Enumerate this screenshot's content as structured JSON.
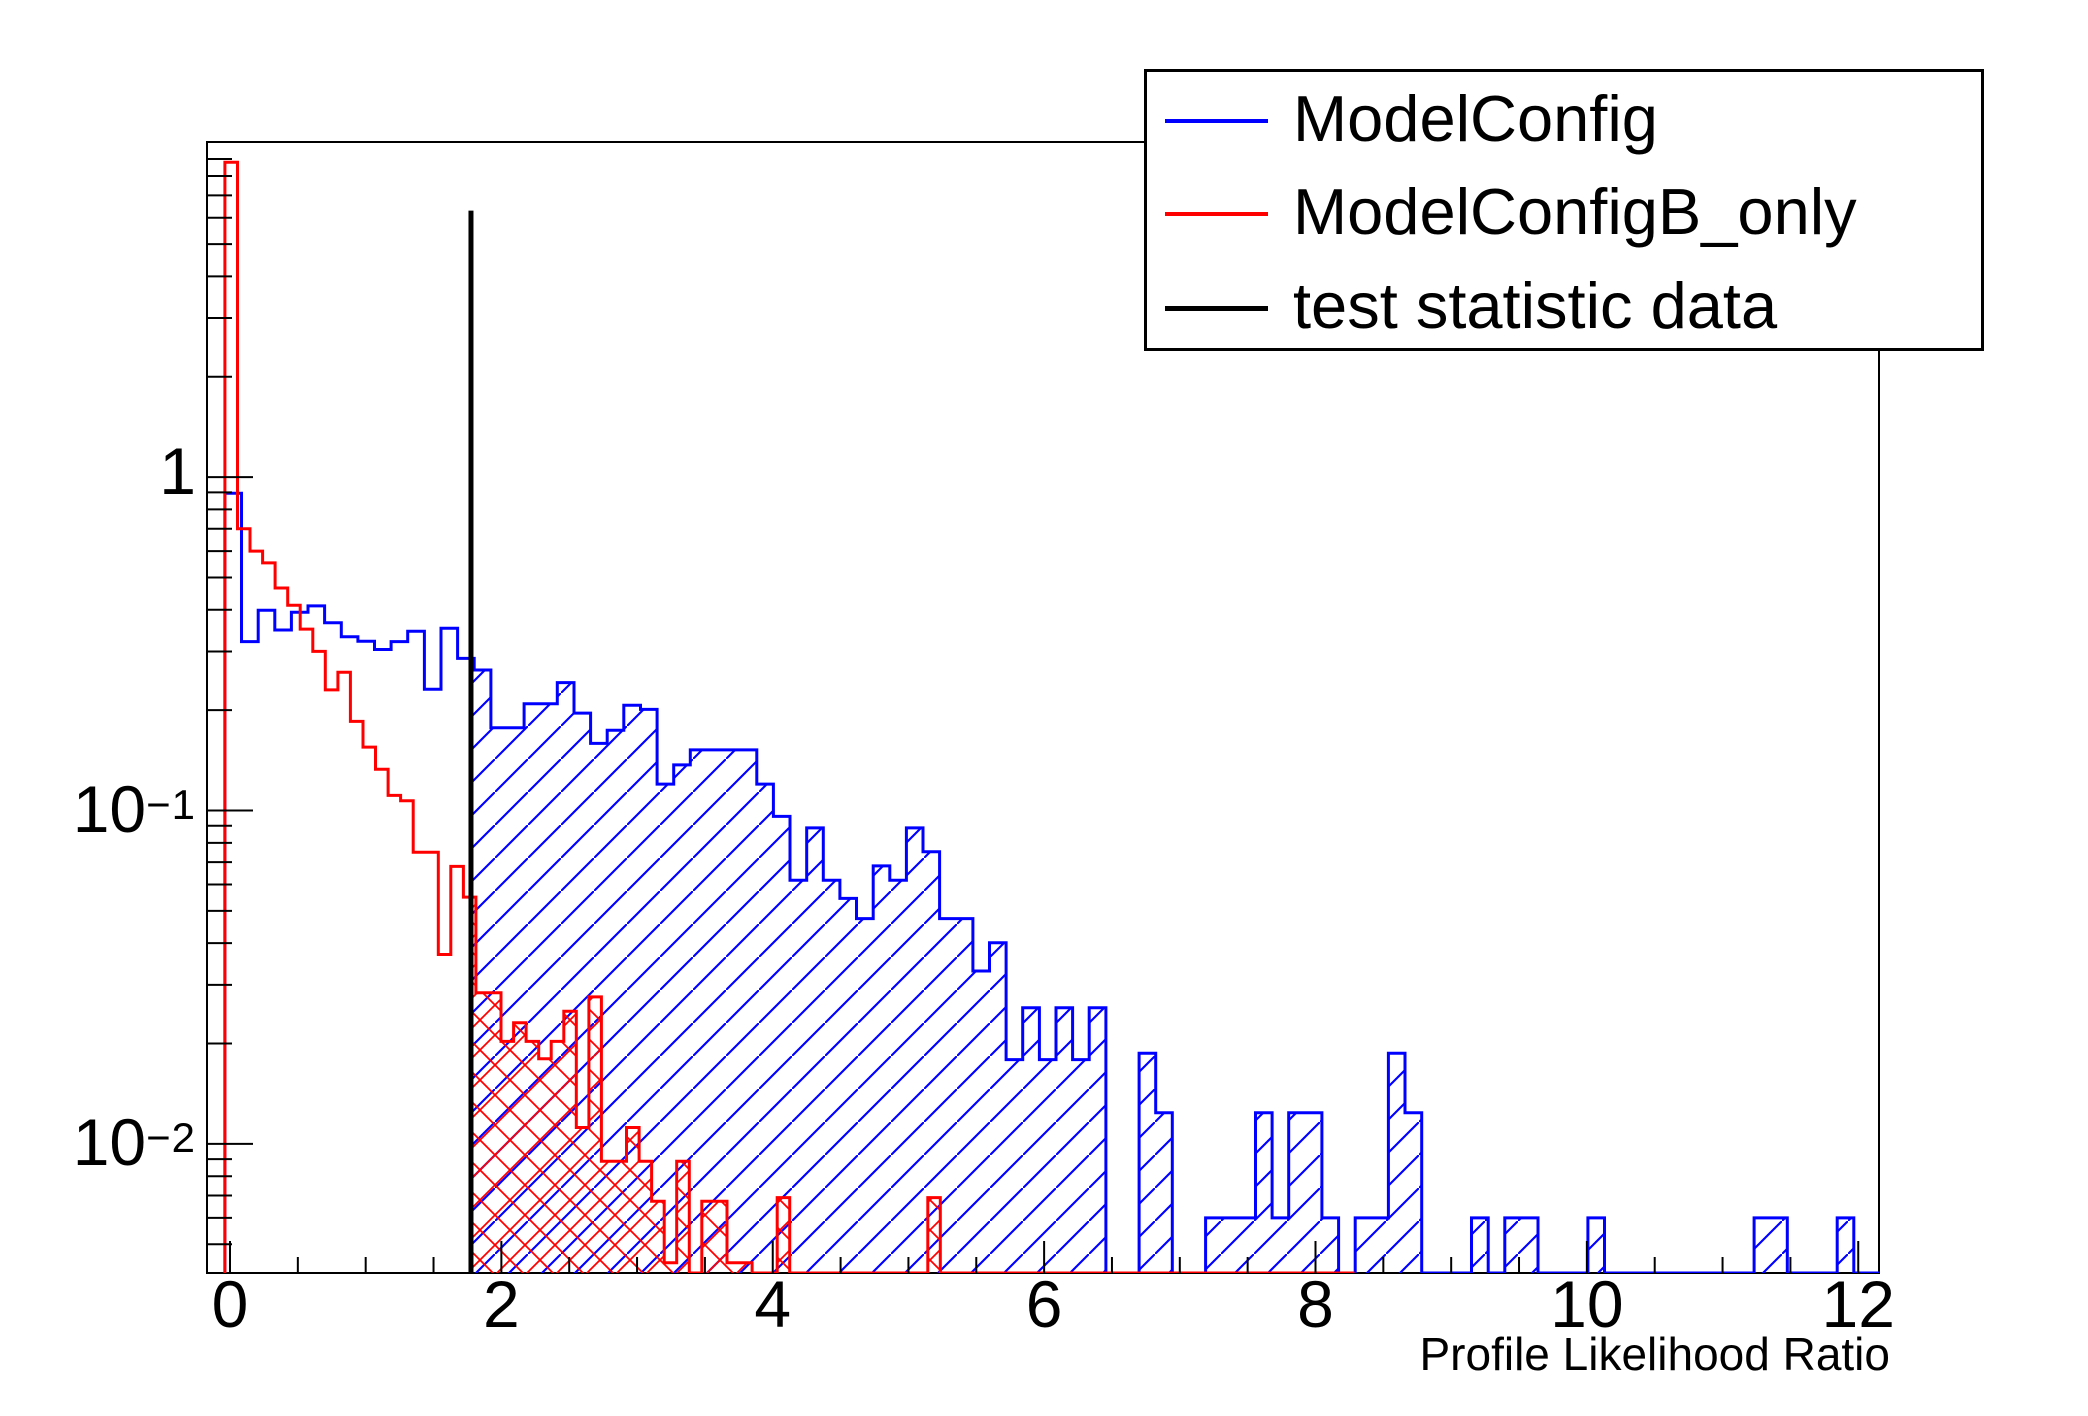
{
  "chart_data": {
    "type": "histogram-step",
    "xlabel": "Profile Likelihood Ratio",
    "x_axis": {
      "min": -0.1695,
      "max": 12.153,
      "major_ticks": [
        0,
        2,
        4,
        6,
        8,
        10,
        12
      ],
      "minor_tick_step": 0.5
    },
    "y_axis": {
      "scale": "log",
      "min": 0.0041,
      "max": 10.12,
      "labels": [
        {
          "value": 1,
          "base": "1",
          "exp": ""
        },
        {
          "value": 0.1,
          "base": "10",
          "exp": "−1"
        },
        {
          "value": 0.01,
          "base": "10",
          "exp": "−2"
        }
      ]
    },
    "test_statistic_line": {
      "x": 1.776,
      "y_top": 6.3,
      "color": "#000000"
    },
    "fill_from_x": 1.776,
    "series": [
      {
        "name": "ModelConfig",
        "color": "#0000ff",
        "hatch": "diagonal",
        "bin_start": -0.0375,
        "bin_width": 0.1225,
        "values": [
          0.894,
          0.321,
          0.399,
          0.348,
          0.393,
          0.411,
          0.366,
          0.332,
          0.322,
          0.304,
          0.321,
          0.345,
          0.231,
          0.352,
          0.286,
          0.264,
          0.177,
          0.177,
          0.209,
          0.209,
          0.242,
          0.196,
          0.159,
          0.174,
          0.207,
          0.201,
          0.12,
          0.137,
          0.152,
          0.152,
          0.152,
          0.152,
          0.12,
          0.096,
          0.0618,
          0.0887,
          0.0618,
          0.0545,
          0.0474,
          0.0682,
          0.0618,
          0.0887,
          0.0752,
          0.0474,
          0.0474,
          0.033,
          0.0401,
          0.0179,
          0.0256,
          0.0179,
          0.0256,
          0.0179,
          0.0256,
          0,
          0,
          0.0187,
          0.0124,
          0,
          0,
          0.006,
          0.006,
          0.006,
          0.0124,
          0.006,
          0.0124,
          0.0124,
          0.006,
          0,
          0.006,
          0.006,
          0.0187,
          0.0124,
          0,
          0,
          0,
          0.006,
          0,
          0.006,
          0.006,
          0,
          0,
          0,
          0.006,
          0,
          0,
          0,
          0,
          0,
          0,
          0,
          0,
          0,
          0.006,
          0.006,
          0,
          0,
          0,
          0.006,
          0
        ]
      },
      {
        "name": "ModelConfigB_only",
        "color": "#ff0000",
        "hatch": "cross",
        "bin_start": -0.0375,
        "bin_width": 0.0925,
        "values": [
          8.8,
          0.7,
          0.6,
          0.553,
          0.465,
          0.413,
          0.35,
          0.3,
          0.23,
          0.26,
          0.185,
          0.155,
          0.133,
          0.111,
          0.107,
          0.075,
          0.075,
          0.037,
          0.068,
          0.055,
          0.0284,
          0.0284,
          0.0203,
          0.0231,
          0.0203,
          0.018,
          0.0203,
          0.025,
          0.0112,
          0.0276,
          0.00887,
          0.00887,
          0.0112,
          0.00887,
          0.00673,
          0.0044,
          0.00887,
          0,
          0.00673,
          0.00673,
          0.0044,
          0.0044,
          0,
          0,
          0.0069,
          0,
          0,
          0,
          0,
          0,
          0,
          0,
          0,
          0,
          0,
          0,
          0.0069,
          0,
          0,
          0,
          0,
          0,
          0,
          0,
          0,
          0,
          0,
          0,
          0,
          0,
          0,
          0,
          0,
          0,
          0,
          0,
          0,
          0,
          0,
          0,
          0,
          0,
          0,
          0,
          0,
          0,
          0,
          0,
          0,
          0
        ]
      }
    ]
  },
  "legend": {
    "items": [
      {
        "label": "ModelConfig",
        "color": "#0000ff",
        "line_width": 4
      },
      {
        "label": "ModelConfigB_only",
        "color": "#ff0000",
        "line_width": 4
      },
      {
        "label": "test statistic data",
        "color": "#000000",
        "line_width": 5
      }
    ]
  }
}
